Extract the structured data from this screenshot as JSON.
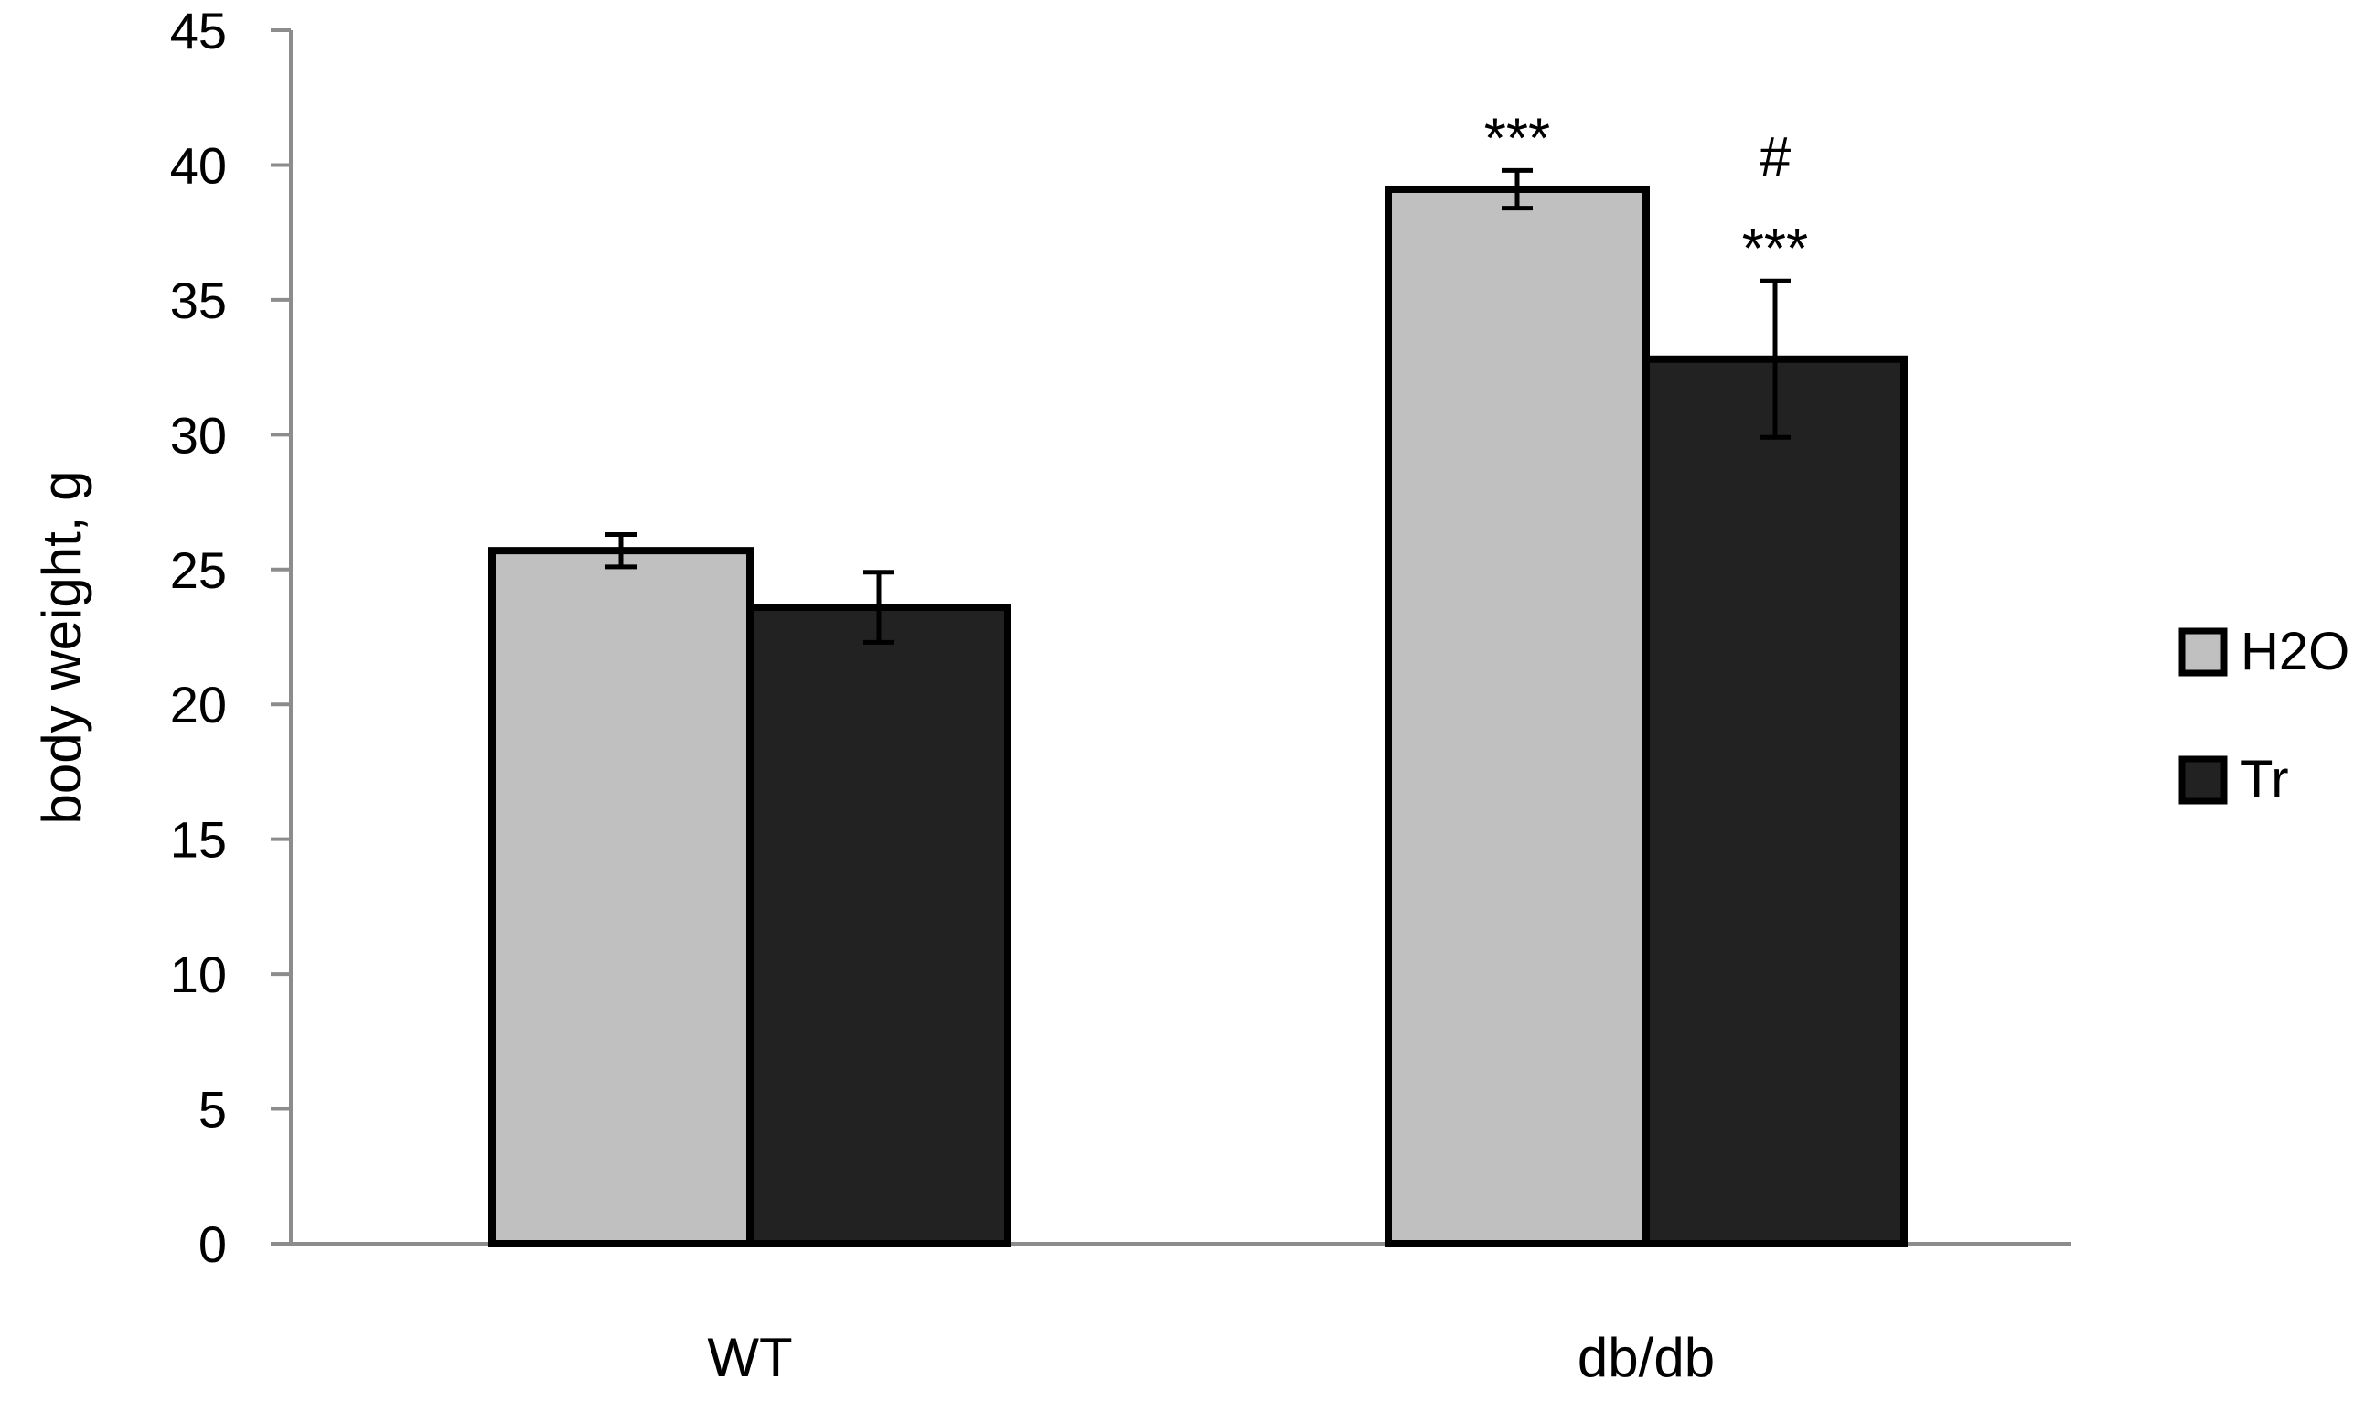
{
  "chart_data": {
    "type": "bar",
    "title": "",
    "xlabel": "",
    "ylabel": "body weight, g",
    "ylim": [
      0,
      45
    ],
    "yticks": [
      0,
      5,
      10,
      15,
      20,
      25,
      30,
      35,
      40,
      45
    ],
    "categories": [
      "WT",
      "db/db"
    ],
    "series": [
      {
        "name": "H2O",
        "color": "#c0c0c0",
        "values": [
          25.7,
          39.1
        ],
        "errors": [
          0.6,
          0.7
        ],
        "annotations": [
          "",
          "***"
        ]
      },
      {
        "name": "Tr",
        "color": "#222222",
        "values": [
          23.6,
          32.8
        ],
        "errors": [
          1.3,
          2.9
        ],
        "annotations": [
          "",
          "***"
        ]
      }
    ],
    "extra_annotations": [
      {
        "category": "db/db",
        "series": "Tr",
        "text": "#"
      }
    ],
    "legend_position": "right",
    "grid": false
  }
}
